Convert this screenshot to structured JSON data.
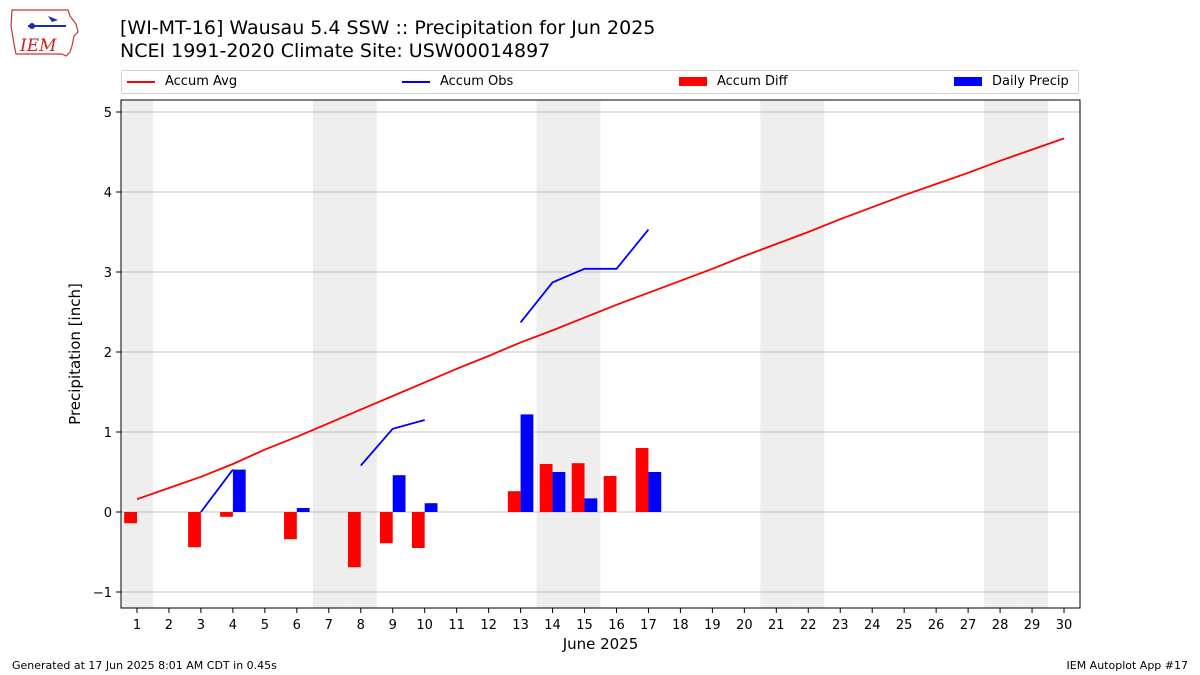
{
  "header": {
    "title_line1": "[WI-MT-16] Wausau 5.4 SSW :: Precipitation for Jun 2025",
    "title_line2": "NCEI 1991-2020 Climate Site: USW00014897",
    "logo_text": "IEM"
  },
  "footer": {
    "left": "Generated at 17 Jun 2025 8:01 AM CDT in 0.45s",
    "right": "IEM Autoplot App #17"
  },
  "colors": {
    "avg": "#ff0000",
    "obs": "#0000ff",
    "diff": "#ff0000",
    "daily": "#0000ff",
    "weekend_band": "#eeeeee",
    "grid": "#b0b0b0"
  },
  "chart_data": {
    "type": "bar",
    "xlabel": "June 2025",
    "ylabel": "Precipitation [inch]",
    "xlim": [
      0.5,
      30.5
    ],
    "ylim": [
      -1.2,
      5.15
    ],
    "yticks": [
      -1,
      0,
      1,
      2,
      3,
      4,
      5
    ],
    "xticks": [
      1,
      2,
      3,
      4,
      5,
      6,
      7,
      8,
      9,
      10,
      11,
      12,
      13,
      14,
      15,
      16,
      17,
      18,
      19,
      20,
      21,
      22,
      23,
      24,
      25,
      26,
      27,
      28,
      29,
      30
    ],
    "grid": "horizontal",
    "legend_position": "top",
    "legend": [
      "Accum Avg",
      "Accum Obs",
      "Accum Diff",
      "Daily Precip"
    ],
    "weekend_days": [
      1,
      7,
      8,
      14,
      15,
      21,
      22,
      28,
      29
    ],
    "series": [
      {
        "name": "Accum Avg",
        "type": "line",
        "x": [
          1,
          2,
          3,
          4,
          5,
          6,
          7,
          8,
          9,
          10,
          11,
          12,
          13,
          14,
          15,
          16,
          17,
          18,
          19,
          20,
          21,
          22,
          23,
          24,
          25,
          26,
          27,
          28,
          29,
          30
        ],
        "values": [
          0.16,
          0.3,
          0.44,
          0.6,
          0.78,
          0.94,
          1.11,
          1.28,
          1.45,
          1.62,
          1.79,
          1.95,
          2.12,
          2.27,
          2.43,
          2.59,
          2.74,
          2.89,
          3.04,
          3.2,
          3.35,
          3.5,
          3.66,
          3.81,
          3.96,
          4.1,
          4.24,
          4.39,
          4.53,
          4.67
        ]
      },
      {
        "name": "Accum Obs",
        "type": "line",
        "segments": [
          {
            "x": [
              3,
              4
            ],
            "values": [
              0.0,
              0.53
            ]
          },
          {
            "x": [
              8,
              9,
              10
            ],
            "values": [
              0.58,
              1.04,
              1.15
            ]
          },
          {
            "x": [
              13,
              14,
              15,
              16,
              17
            ],
            "values": [
              2.37,
              2.87,
              3.04,
              3.04,
              3.53
            ]
          }
        ]
      },
      {
        "name": "Accum Diff",
        "type": "bar",
        "x": [
          1,
          3,
          4,
          6,
          8,
          9,
          10,
          13,
          14,
          15,
          16,
          17
        ],
        "values": [
          -0.14,
          -0.44,
          -0.06,
          -0.34,
          -0.69,
          -0.39,
          -0.45,
          0.26,
          0.6,
          0.61,
          0.45,
          0.8
        ]
      },
      {
        "name": "Daily Precip",
        "type": "bar",
        "x": [
          4,
          6,
          9,
          10,
          13,
          14,
          15,
          17
        ],
        "values": [
          0.53,
          0.05,
          0.46,
          0.11,
          1.22,
          0.5,
          0.17,
          0.5
        ]
      }
    ]
  }
}
